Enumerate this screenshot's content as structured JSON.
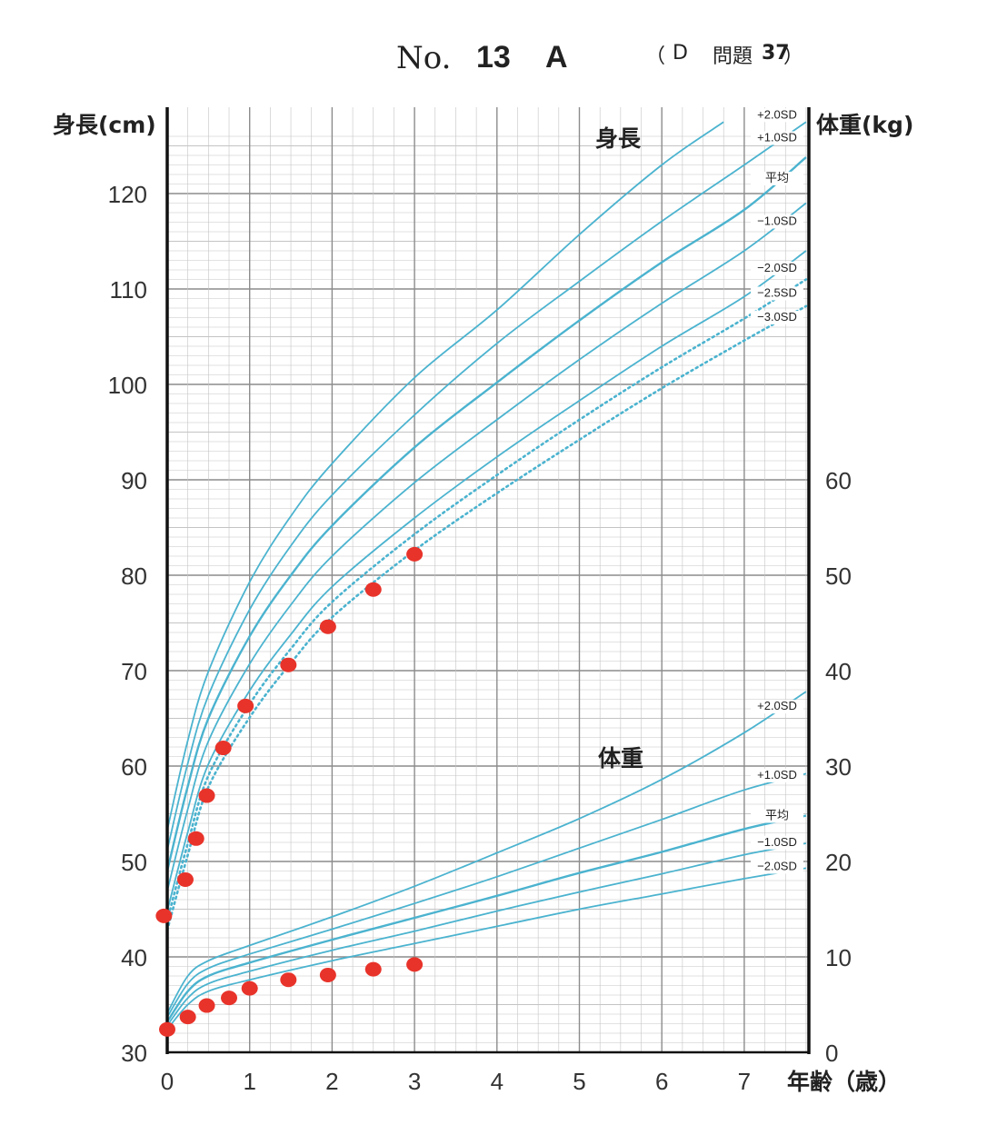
{
  "header": {
    "no_prefix": "No.",
    "number": "13",
    "letter": "A",
    "ref_open": "（",
    "ref_letter": "D",
    "ref_text": "問題",
    "ref_num": "37",
    "ref_close": "）"
  },
  "axes": {
    "height_title": "身長(cm)",
    "weight_title": "体重(kg)",
    "x_title": "年齢（歳）",
    "height_ticks": [
      "30",
      "40",
      "50",
      "60",
      "70",
      "80",
      "90",
      "100",
      "110",
      "120"
    ],
    "weight_ticks": [
      "0",
      "10",
      "20",
      "30",
      "40",
      "50",
      "60"
    ],
    "x_ticks": [
      "0",
      "1",
      "2",
      "3",
      "4",
      "5",
      "6",
      "7"
    ]
  },
  "colors": {
    "curve": "#4bb3cf",
    "grid_major": "#8c8c8c",
    "grid_minor": "#c4c4c4",
    "marker": "#e8332a",
    "axis": "#111111"
  },
  "chart_data": {
    "type": "line",
    "xlabel": "年齢（歳）",
    "xlim": [
      0,
      7.75
    ],
    "y_left": {
      "label": "身長(cm)",
      "lim": [
        30,
        124
      ]
    },
    "y_right": {
      "label": "体重(kg)",
      "lim": [
        0,
        64
      ]
    },
    "sections": {
      "height": "身長",
      "weight": "体重"
    },
    "grid": true,
    "height_series": [
      {
        "name": "+2.0SD",
        "style": "solid",
        "x": [
          0,
          0.25,
          0.5,
          1,
          1.5,
          2,
          3,
          4,
          5,
          6,
          6.75
        ],
        "y": [
          53.3,
          62.7,
          69.9,
          79.3,
          86.2,
          91.7,
          100.7,
          107.8,
          115.7,
          123.0,
          127.5
        ]
      },
      {
        "name": "+1.0SD",
        "style": "solid",
        "x": [
          0,
          0.25,
          0.5,
          1,
          1.5,
          2,
          3,
          4,
          5,
          6,
          7,
          7.75
        ],
        "y": [
          51.2,
          60.3,
          67.4,
          76.4,
          83.1,
          88.4,
          96.8,
          104.3,
          110.8,
          117.1,
          123.0,
          127.5
        ]
      },
      {
        "name": "平均",
        "style": "solid",
        "x": [
          0,
          0.25,
          0.5,
          1,
          1.5,
          2,
          3,
          4,
          5,
          6,
          7,
          7.75
        ],
        "y": [
          49.0,
          57.9,
          65.0,
          73.6,
          80.0,
          85.2,
          93.4,
          100.2,
          106.7,
          112.8,
          118.3,
          123.8
        ]
      },
      {
        "name": "−1.0SD",
        "style": "solid",
        "x": [
          0,
          0.25,
          0.5,
          1,
          1.5,
          2,
          3,
          4,
          5,
          6,
          7,
          7.75
        ],
        "y": [
          46.9,
          55.5,
          62.6,
          70.7,
          76.9,
          82.0,
          89.7,
          96.3,
          102.6,
          108.5,
          114.0,
          119.0
        ]
      },
      {
        "name": "−2.0SD",
        "style": "solid",
        "x": [
          0,
          0.25,
          0.5,
          1,
          1.5,
          2,
          3,
          4,
          5,
          6,
          7,
          7.75
        ],
        "y": [
          44.8,
          53.1,
          60.2,
          67.9,
          73.8,
          78.8,
          86.0,
          92.4,
          98.3,
          104.0,
          109.2,
          114.0
        ]
      },
      {
        "name": "−2.5SD",
        "style": "dotted",
        "x": [
          0,
          0.25,
          0.5,
          1,
          1.5,
          2,
          3,
          4,
          5,
          6,
          7,
          7.75
        ],
        "y": [
          43.8,
          51.9,
          59.0,
          66.5,
          72.3,
          77.2,
          84.3,
          90.5,
          96.3,
          101.8,
          106.9,
          111.0
        ]
      },
      {
        "name": "−3.0SD",
        "style": "dotted",
        "x": [
          0,
          0.25,
          0.5,
          1,
          1.5,
          2,
          3,
          4,
          5,
          6,
          7,
          7.75
        ],
        "y": [
          42.8,
          50.7,
          57.8,
          65.1,
          70.8,
          75.6,
          82.6,
          88.6,
          94.2,
          99.6,
          104.6,
          108.2
        ]
      }
    ],
    "weight_series": [
      {
        "name": "+2.0SD",
        "x": [
          0,
          0.25,
          0.5,
          1,
          2,
          3,
          4,
          5,
          6,
          7,
          7.75
        ],
        "y": [
          4.1,
          8.0,
          9.6,
          11.2,
          14.2,
          17.4,
          20.9,
          24.5,
          28.6,
          33.5,
          37.8
        ]
      },
      {
        "name": "+1.0SD",
        "x": [
          0,
          0.25,
          0.5,
          1,
          2,
          3,
          4,
          5,
          6,
          7,
          7.75
        ],
        "y": [
          3.7,
          7.2,
          8.8,
          10.3,
          12.9,
          15.6,
          18.4,
          21.4,
          24.4,
          27.5,
          29.2
        ]
      },
      {
        "name": "平均",
        "x": [
          0,
          0.25,
          0.5,
          1,
          2,
          3,
          4,
          5,
          6,
          7,
          7.75
        ],
        "y": [
          3.2,
          6.4,
          8.0,
          9.4,
          11.8,
          14.1,
          16.4,
          18.8,
          21.0,
          23.4,
          24.8
        ]
      },
      {
        "name": "−1.0SD",
        "x": [
          0,
          0.25,
          0.5,
          1,
          2,
          3,
          4,
          5,
          6,
          7,
          7.75
        ],
        "y": [
          2.8,
          5.7,
          7.2,
          8.5,
          10.7,
          12.7,
          14.8,
          16.8,
          18.7,
          20.7,
          21.9
        ]
      },
      {
        "name": "−2.0SD",
        "x": [
          0,
          0.25,
          0.5,
          1,
          2,
          3,
          4,
          5,
          6,
          7,
          7.75
        ],
        "y": [
          2.4,
          5.0,
          6.4,
          7.6,
          9.6,
          11.4,
          13.2,
          15.0,
          16.6,
          18.2,
          19.3
        ]
      }
    ],
    "patient_height": {
      "x": [
        -0.04,
        0.22,
        0.35,
        0.48,
        0.68,
        0.95,
        1.47,
        1.95,
        2.5,
        3.0
      ],
      "y": [
        44.3,
        48.1,
        52.4,
        56.9,
        61.9,
        66.3,
        70.6,
        74.6,
        78.5,
        82.2
      ]
    },
    "patient_weight": {
      "x": [
        0,
        0.25,
        0.48,
        0.75,
        1.0,
        1.47,
        1.95,
        2.5,
        3.0
      ],
      "y": [
        2.4,
        3.7,
        4.9,
        5.7,
        6.7,
        7.6,
        8.1,
        8.7,
        9.2
      ]
    }
  }
}
